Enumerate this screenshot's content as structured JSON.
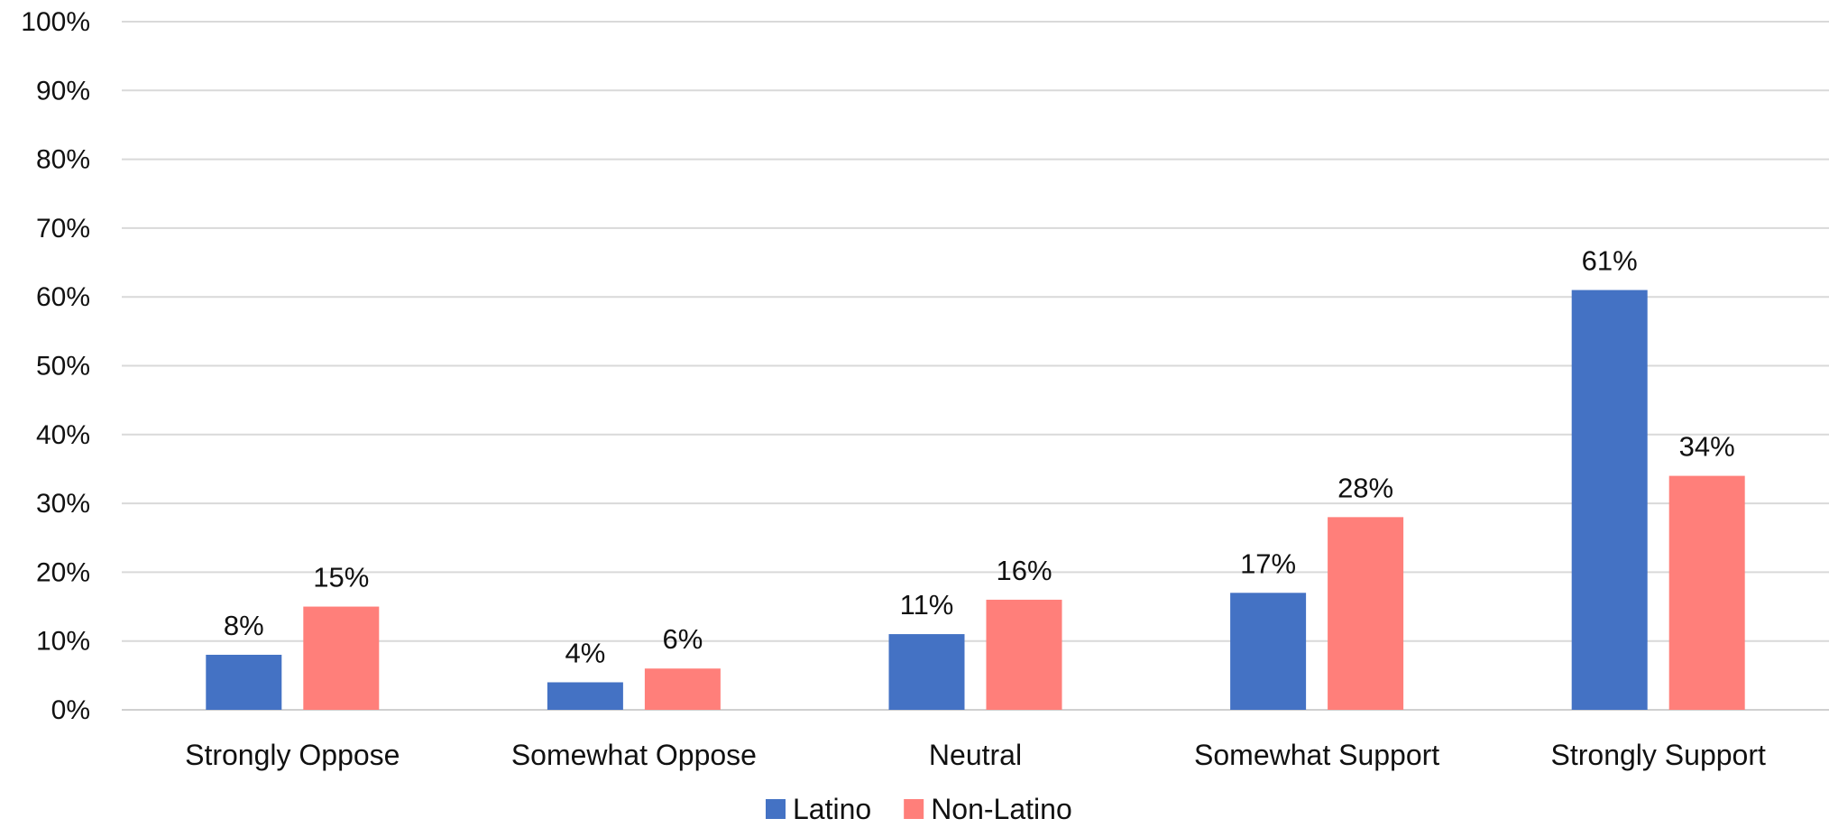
{
  "chart_data": {
    "type": "bar",
    "categories": [
      "Strongly Oppose",
      "Somewhat Oppose",
      "Neutral",
      "Somewhat Support",
      "Strongly Support"
    ],
    "series": [
      {
        "name": "Latino",
        "values": [
          8,
          4,
          11,
          17,
          61
        ],
        "labels": [
          "8%",
          "4%",
          "11%",
          "17%",
          "61%"
        ]
      },
      {
        "name": "Non-Latino",
        "values": [
          15,
          6,
          16,
          28,
          34
        ],
        "labels": [
          "15%",
          "6%",
          "16%",
          "28%",
          "34%"
        ]
      }
    ],
    "ylim": [
      0,
      100
    ],
    "yticks": [
      "0%",
      "10%",
      "20%",
      "30%",
      "40%",
      "50%",
      "60%",
      "70%",
      "80%",
      "90%",
      "100%"
    ],
    "grid": true,
    "legend_position": "bottom-center",
    "colors": {
      "Latino": "#4472C4",
      "Non-Latino": "#FF7F7A"
    }
  }
}
